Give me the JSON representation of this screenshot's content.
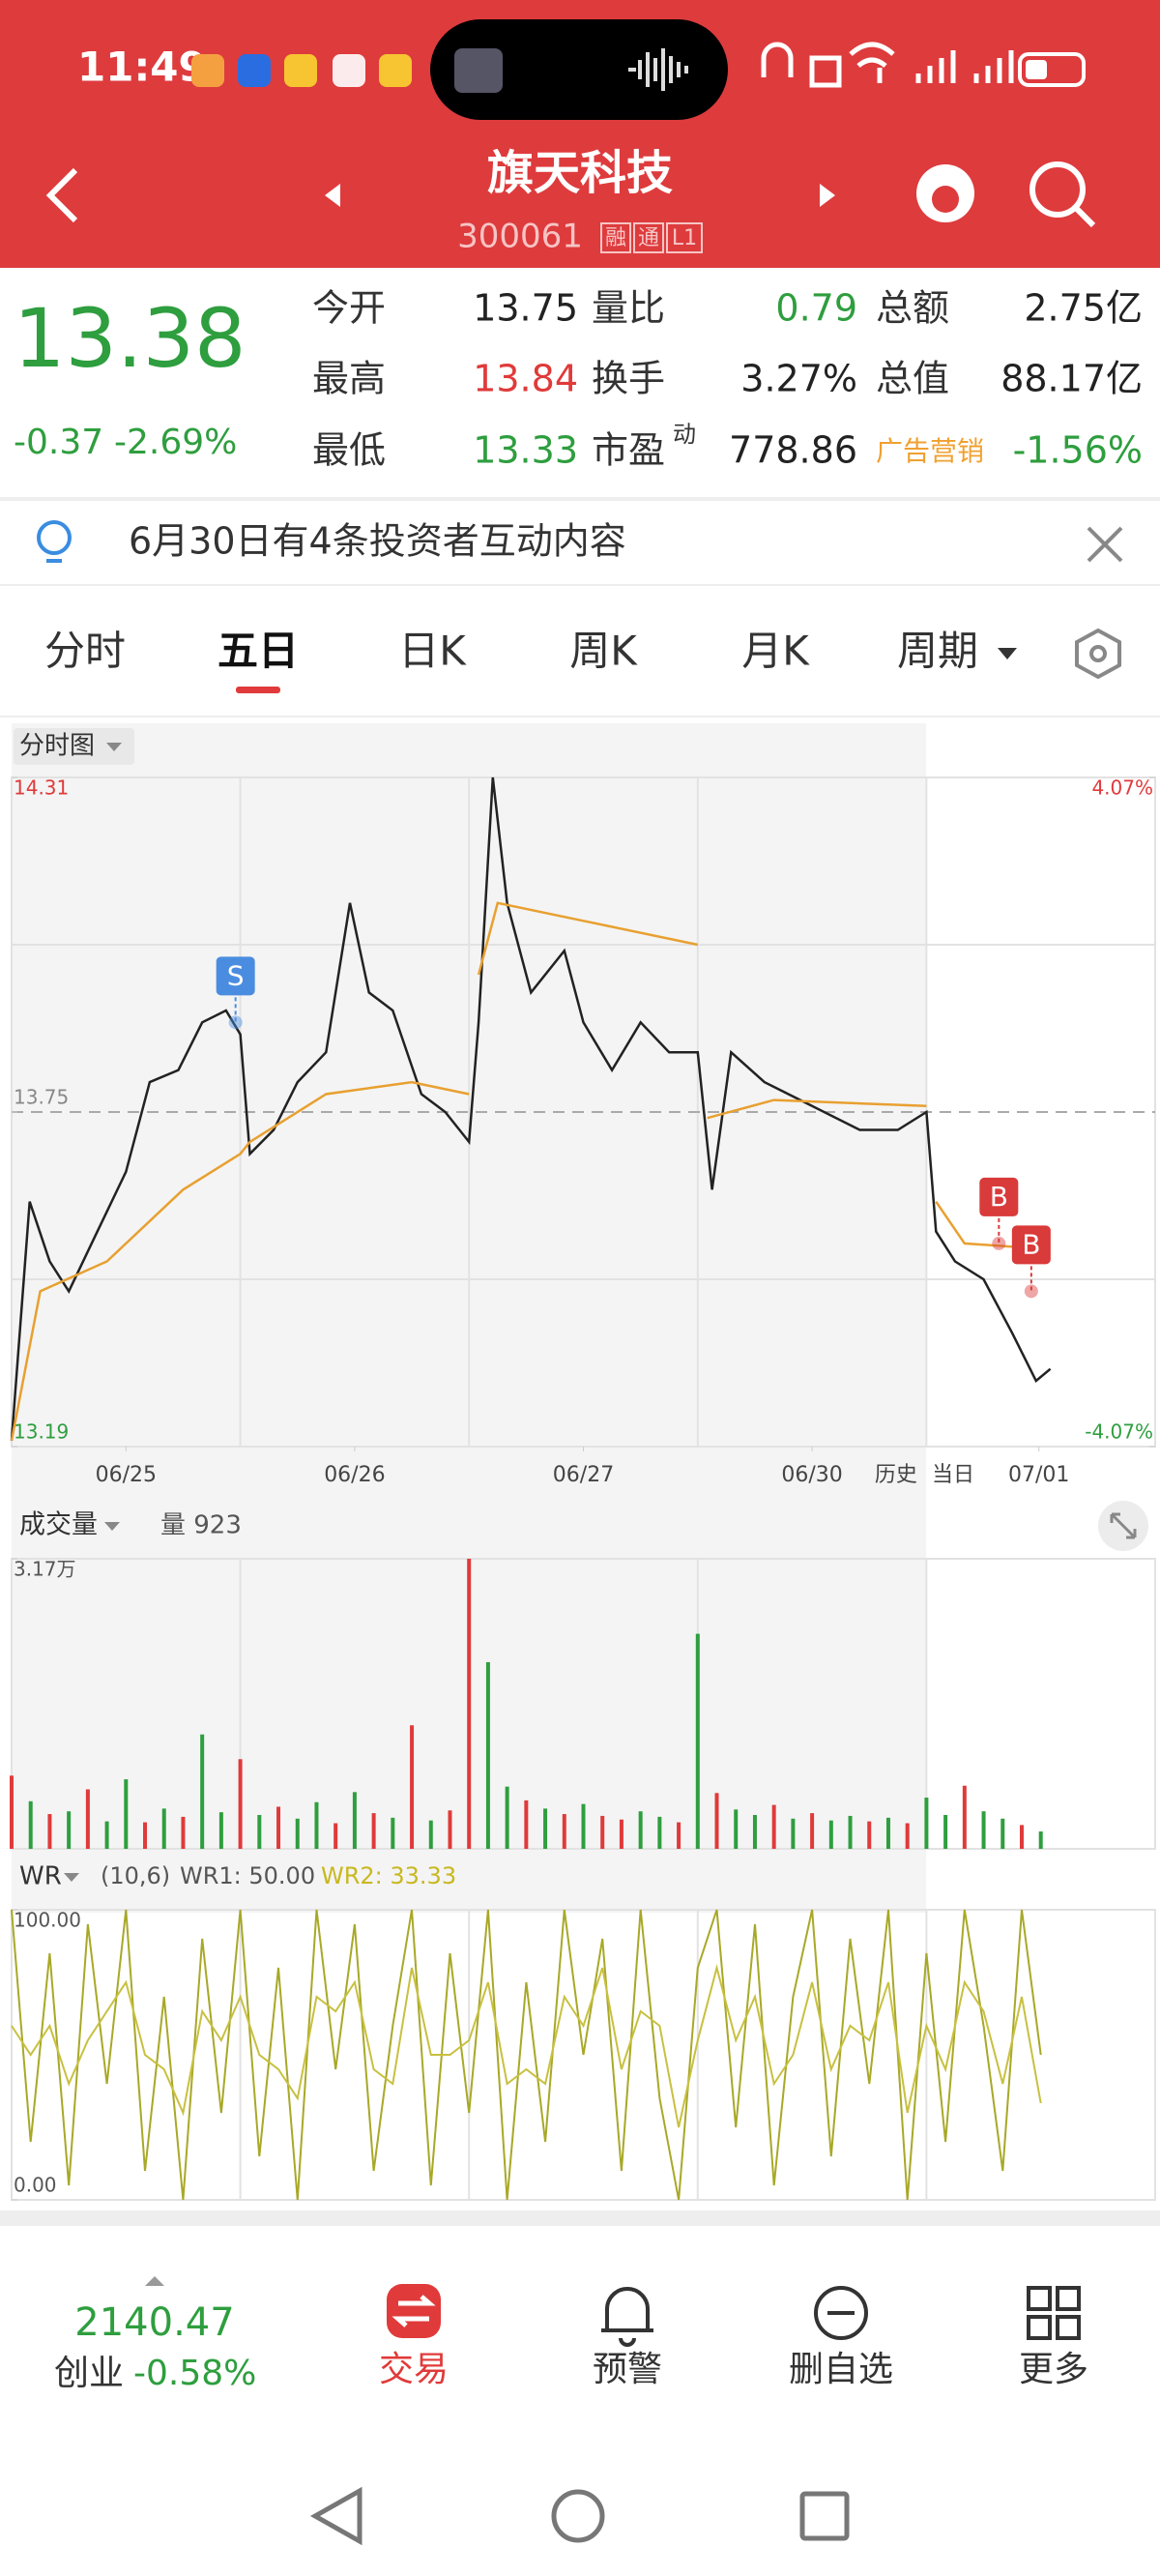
{
  "status": {
    "time": "11:49"
  },
  "header": {
    "title": "旗天科技",
    "code": "300061",
    "tags": [
      "融",
      "通",
      "L1"
    ]
  },
  "quote": {
    "price": "13.38",
    "change": "-0.37",
    "pct": "-2.69%",
    "stats": [
      {
        "label": "今开",
        "value": "13.75",
        "color": "#222222"
      },
      {
        "label": "量比",
        "value": "0.79",
        "color": "#2e9e3e"
      },
      {
        "label": "总额",
        "value": "2.75亿",
        "color": "#222222"
      },
      {
        "label": "最高",
        "value": "13.84",
        "color": "#e03a3a"
      },
      {
        "label": "换手",
        "value": "3.27%",
        "color": "#222222"
      },
      {
        "label": "总值",
        "value": "88.17亿",
        "color": "#222222"
      },
      {
        "label": "最低",
        "value": "13.33",
        "color": "#2e9e3e"
      },
      {
        "label": "市盈",
        "sup": "动",
        "value": "778.86",
        "color": "#222222"
      },
      {
        "label": "广告营销",
        "label_color": "#f0a030",
        "value": "-1.56%",
        "color": "#2e9e3e"
      }
    ]
  },
  "notice": "6月30日有4条投资者互动内容",
  "tabs": [
    "分时",
    "五日",
    "日K",
    "周K",
    "月K",
    "周期"
  ],
  "selected_tab": 1,
  "chart_data": [
    {
      "type": "line",
      "title": "分时图",
      "xlim": [
        0,
        1200
      ],
      "xticks": [
        {
          "value": 120,
          "label": "06/25"
        },
        {
          "value": 360,
          "label": "06/26"
        },
        {
          "value": 600,
          "label": "06/27"
        },
        {
          "value": 840,
          "label": "06/30"
        },
        {
          "value": 1078,
          "label": "07/01"
        }
      ],
      "day_boundaries": [
        240,
        480,
        720,
        960
      ],
      "ylim": [
        13.19,
        14.31
      ],
      "yticks": [
        13.19,
        13.75,
        14.31
      ],
      "ref_line": 13.75,
      "y2lim": [
        -4.07,
        4.07
      ],
      "y2ticks": [
        {
          "value": -4.07,
          "label": "-4.07%"
        },
        {
          "value": 4.07,
          "label": "4.07%"
        }
      ],
      "series": [
        {
          "color": "#222222",
          "x": [
            0,
            19,
            40,
            60,
            90,
            120,
            145,
            175,
            200,
            225,
            240,
            250,
            275,
            300,
            330,
            355,
            375,
            400,
            430,
            455,
            480,
            490,
            505,
            520,
            545,
            580,
            600,
            630,
            660,
            690,
            720,
            735,
            755,
            790,
            840,
            890,
            930,
            960,
            970,
            990,
            1020,
            1050,
            1075,
            1090
          ],
          "values": [
            13.2,
            13.6,
            13.5,
            13.45,
            13.55,
            13.65,
            13.8,
            13.82,
            13.9,
            13.92,
            13.88,
            13.68,
            13.72,
            13.8,
            13.85,
            14.1,
            13.95,
            13.92,
            13.78,
            13.75,
            13.7,
            13.9,
            14.31,
            14.1,
            13.95,
            14.02,
            13.9,
            13.82,
            13.9,
            13.85,
            13.85,
            13.62,
            13.85,
            13.8,
            13.76,
            13.72,
            13.72,
            13.75,
            13.55,
            13.5,
            13.47,
            13.38,
            13.3,
            13.32
          ]
        },
        {
          "color": "#e8a030",
          "x": [
            0,
            30,
            100,
            180,
            240,
            250,
            330,
            420,
            480,
            481,
            490,
            510,
            600,
            720,
            721,
            730,
            800,
            960,
            961,
            970,
            1000,
            1090
          ],
          "values": [
            13.2,
            13.45,
            13.5,
            13.62,
            13.68,
            13.7,
            13.78,
            13.8,
            13.78,
            null,
            13.98,
            14.1,
            14.07,
            14.03,
            null,
            13.74,
            13.77,
            13.76,
            null,
            13.6,
            13.53,
            13.52
          ]
        }
      ],
      "markers": [
        {
          "text": "S",
          "x": 235,
          "y": 13.9,
          "color": "#4a8de0"
        },
        {
          "text": "B",
          "x": 1036,
          "y": 13.53,
          "color": "#d93a3a"
        },
        {
          "text": "B",
          "x": 1070,
          "y": 13.45,
          "color": "#d93a3a"
        }
      ],
      "annotations": [
        {
          "text": "历史",
          "x": 928
        },
        {
          "text": "当日",
          "x": 988
        }
      ]
    },
    {
      "type": "bar",
      "title": "成交量",
      "subtitle": "量 923",
      "xlim": [
        0,
        1200
      ],
      "day_boundaries": [
        240,
        480,
        720,
        960
      ],
      "ylim": [
        0,
        31700
      ],
      "yticks": [
        {
          "value": 31700,
          "label": "3.17万"
        }
      ],
      "x": [
        0,
        20,
        40,
        60,
        80,
        100,
        120,
        140,
        160,
        180,
        200,
        220,
        240,
        260,
        280,
        300,
        320,
        340,
        360,
        380,
        400,
        420,
        440,
        460,
        480,
        500,
        520,
        540,
        560,
        580,
        600,
        620,
        640,
        660,
        680,
        700,
        720,
        740,
        760,
        780,
        800,
        820,
        840,
        860,
        880,
        900,
        920,
        940,
        960,
        980,
        1000,
        1020,
        1040,
        1060,
        1080
      ],
      "values": [
        8000,
        5200,
        3800,
        4100,
        6500,
        3000,
        7600,
        2900,
        4400,
        3500,
        12500,
        4000,
        9800,
        3700,
        4600,
        3300,
        5100,
        2800,
        6200,
        3900,
        3400,
        13500,
        3100,
        4200,
        31700,
        20400,
        6800,
        5300,
        4400,
        3800,
        4900,
        3600,
        3200,
        4100,
        3500,
        2900,
        23500,
        6100,
        4300,
        3700,
        4800,
        3300,
        3900,
        3100,
        3600,
        3000,
        3400,
        2800,
        5600,
        3700,
        6900,
        4100,
        3300,
        2600,
        1900
      ],
      "colors": [
        "#e03a3a",
        "#2e9e3e",
        "#e03a3a",
        "#2e9e3e",
        "#e03a3a",
        "#2e9e3e",
        "#2e9e3e",
        "#e03a3a",
        "#2e9e3e",
        "#e03a3a",
        "#2e9e3e",
        "#2e9e3e",
        "#e03a3a",
        "#2e9e3e",
        "#e03a3a",
        "#2e9e3e",
        "#2e9e3e",
        "#e03a3a",
        "#2e9e3e",
        "#e03a3a",
        "#2e9e3e",
        "#e03a3a",
        "#2e9e3e",
        "#e03a3a",
        "#e03a3a",
        "#2e9e3e",
        "#2e9e3e",
        "#e03a3a",
        "#2e9e3e",
        "#e03a3a",
        "#2e9e3e",
        "#e03a3a",
        "#e03a3a",
        "#2e9e3e",
        "#2e9e3e",
        "#e03a3a",
        "#2e9e3e",
        "#e03a3a",
        "#2e9e3e",
        "#2e9e3e",
        "#e03a3a",
        "#2e9e3e",
        "#e03a3a",
        "#2e9e3e",
        "#2e9e3e",
        "#e03a3a",
        "#2e9e3e",
        "#e03a3a",
        "#2e9e3e",
        "#2e9e3e",
        "#e03a3a",
        "#2e9e3e",
        "#2e9e3e",
        "#e03a3a",
        "#2e9e3e"
      ]
    },
    {
      "type": "line",
      "title": "WR",
      "params": "(10,6)",
      "legend": [
        {
          "text": "WR1: 50.00",
          "color": "#555555"
        },
        {
          "text": "WR2: 33.33",
          "color": "#c8b820"
        }
      ],
      "xlim": [
        0,
        1200
      ],
      "day_boundaries": [
        240,
        480,
        720,
        960
      ],
      "ylim": [
        0,
        100
      ],
      "yticks": [
        {
          "value": 0,
          "label": "0.00"
        },
        {
          "value": 100,
          "label": "100.00"
        }
      ],
      "series": [
        {
          "color": "#a8a828",
          "x": [
            0,
            20,
            40,
            60,
            80,
            100,
            120,
            140,
            160,
            180,
            200,
            220,
            240,
            260,
            280,
            300,
            320,
            340,
            360,
            380,
            400,
            420,
            440,
            460,
            480,
            500,
            520,
            540,
            560,
            580,
            600,
            620,
            640,
            660,
            680,
            700,
            720,
            740,
            760,
            780,
            800,
            820,
            840,
            860,
            880,
            900,
            920,
            940,
            960,
            980,
            1000,
            1020,
            1040,
            1060,
            1080
          ],
          "values": [
            100,
            20,
            85,
            5,
            95,
            40,
            100,
            10,
            70,
            0,
            90,
            30,
            100,
            15,
            80,
            0,
            100,
            45,
            95,
            10,
            60,
            100,
            5,
            85,
            30,
            100,
            0,
            75,
            20,
            100,
            50,
            90,
            10,
            100,
            35,
            0,
            80,
            100,
            25,
            95,
            5,
            70,
            100,
            15,
            90,
            40,
            100,
            0,
            85,
            20,
            100,
            60,
            10,
            100,
            50
          ]
        },
        {
          "color": "#c8c040",
          "x": [
            0,
            20,
            40,
            60,
            80,
            100,
            120,
            140,
            160,
            180,
            200,
            220,
            240,
            260,
            280,
            300,
            320,
            340,
            360,
            380,
            400,
            420,
            440,
            460,
            480,
            500,
            520,
            540,
            560,
            580,
            600,
            620,
            640,
            660,
            680,
            700,
            720,
            740,
            760,
            780,
            800,
            820,
            840,
            860,
            880,
            900,
            920,
            940,
            960,
            980,
            1000,
            1020,
            1040,
            1060,
            1080
          ],
          "values": [
            60,
            50,
            60,
            40,
            55,
            65,
            75,
            50,
            45,
            30,
            65,
            55,
            70,
            50,
            45,
            35,
            70,
            65,
            75,
            45,
            40,
            80,
            50,
            50,
            55,
            75,
            40,
            45,
            40,
            70,
            60,
            80,
            45,
            65,
            60,
            25,
            55,
            80,
            55,
            70,
            40,
            50,
            75,
            45,
            60,
            55,
            75,
            30,
            60,
            45,
            75,
            65,
            40,
            70,
            33.33
          ]
        }
      ]
    }
  ],
  "bottom": {
    "index_value": "2140.47",
    "index_name": "创业",
    "index_change": "-0.58%",
    "buttons": [
      "交易",
      "预警",
      "删自选",
      "更多"
    ]
  }
}
